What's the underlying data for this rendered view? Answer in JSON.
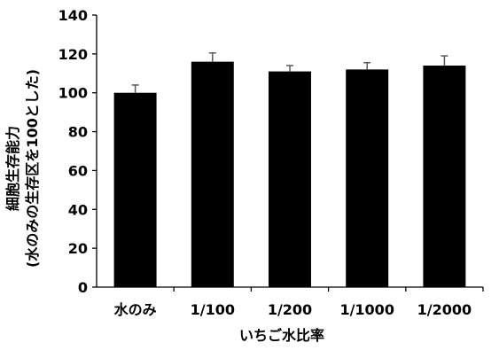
{
  "chart_data": {
    "type": "bar",
    "categories": [
      "水のみ",
      "1/100",
      "1/200",
      "1/1000",
      "1/2000"
    ],
    "values": [
      100,
      116,
      111,
      112,
      114
    ],
    "errors": [
      4,
      4.5,
      3,
      3.5,
      5
    ],
    "xlabel": "いちご水比率",
    "ylabel_line1": "細胞生存能力",
    "ylabel_line2": "(水のみの生存区を100とした)",
    "ylim": [
      0,
      140
    ],
    "yticks": [
      0,
      20,
      40,
      60,
      80,
      100,
      120,
      140
    ],
    "grid": false,
    "legend": "none",
    "colors": {
      "bar": "#000000",
      "error_bar": "#595959",
      "axis": "#000000"
    }
  }
}
